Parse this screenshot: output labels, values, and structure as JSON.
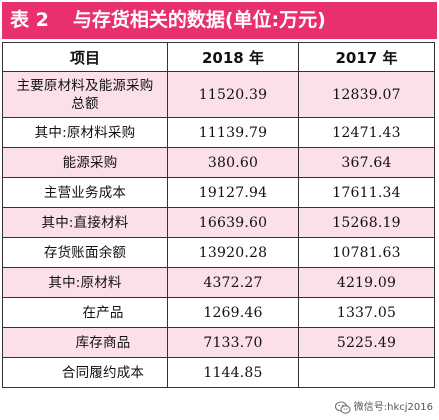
{
  "title": {
    "table_number": "表 2",
    "caption": "与存货相关的数据(单位:万元)"
  },
  "header": {
    "item": "项目",
    "y2018": "2018 年",
    "y2017": "2017 年"
  },
  "rows": [
    {
      "label": "主要原材料及能源采购总额",
      "v2018": "11520.39",
      "v2017": "12839.07"
    },
    {
      "label": "其中:原材料采购",
      "v2018": "11139.79",
      "v2017": "12471.43"
    },
    {
      "label": "能源采购",
      "v2018": "380.60",
      "v2017": "367.64"
    },
    {
      "label": "主营业务成本",
      "v2018": "19127.94",
      "v2017": "17611.34"
    },
    {
      "label": "其中:直接材料",
      "v2018": "16639.60",
      "v2017": "15268.19"
    },
    {
      "label": "存货账面余额",
      "v2018": "13920.28",
      "v2017": "10781.63"
    },
    {
      "label": "其中:原材料",
      "v2018": "4372.27",
      "v2017": "4219.09"
    },
    {
      "label": "在产品",
      "v2018": "1269.46",
      "v2017": "1337.05"
    },
    {
      "label": "库存商品",
      "v2018": "7133.70",
      "v2017": "5225.49"
    },
    {
      "label": "合同履约成本",
      "v2018": "1144.85",
      "v2017": ""
    }
  ],
  "watermark": {
    "text": "微信号:hkcj2016",
    "icon": "wechat-icon"
  },
  "colors": {
    "title_bg": "#e8306f",
    "pink_row": "#fbe0e8"
  }
}
